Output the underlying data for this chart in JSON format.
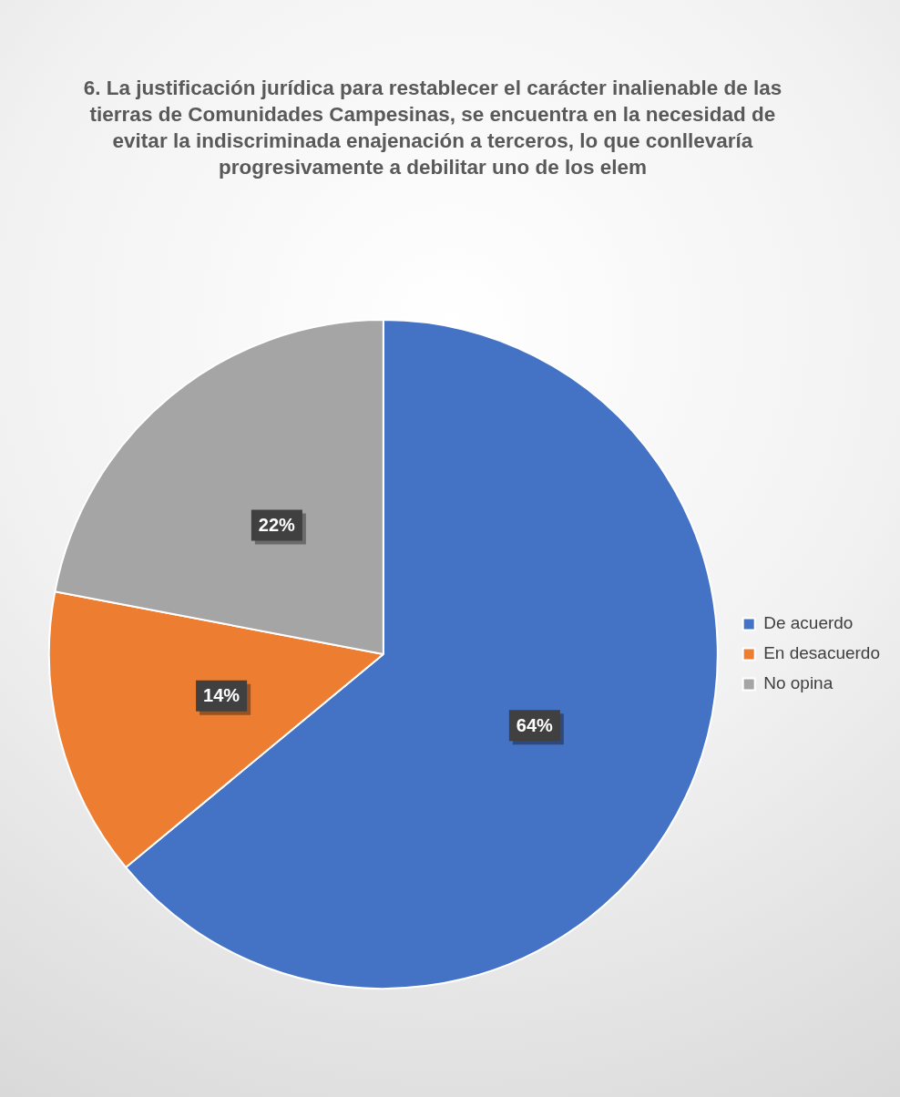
{
  "chart_data": {
    "type": "pie",
    "title": "6. La justificación jurídica para restablecer el carácter inalienable de las tierras de Comunidades Campesinas, se encuentra en la necesidad de evitar la indiscriminada enajenación a terceros, lo que conllevaría progresivamente a debilitar uno de los elem",
    "categories": [
      "De acuerdo",
      "En desacuerdo",
      "No opina"
    ],
    "values": [
      64,
      14,
      22
    ],
    "colors": [
      "#4472c4",
      "#ed7d31",
      "#a5a5a5"
    ],
    "value_labels": [
      "64%",
      "14%",
      "22%"
    ],
    "legend": "right"
  }
}
